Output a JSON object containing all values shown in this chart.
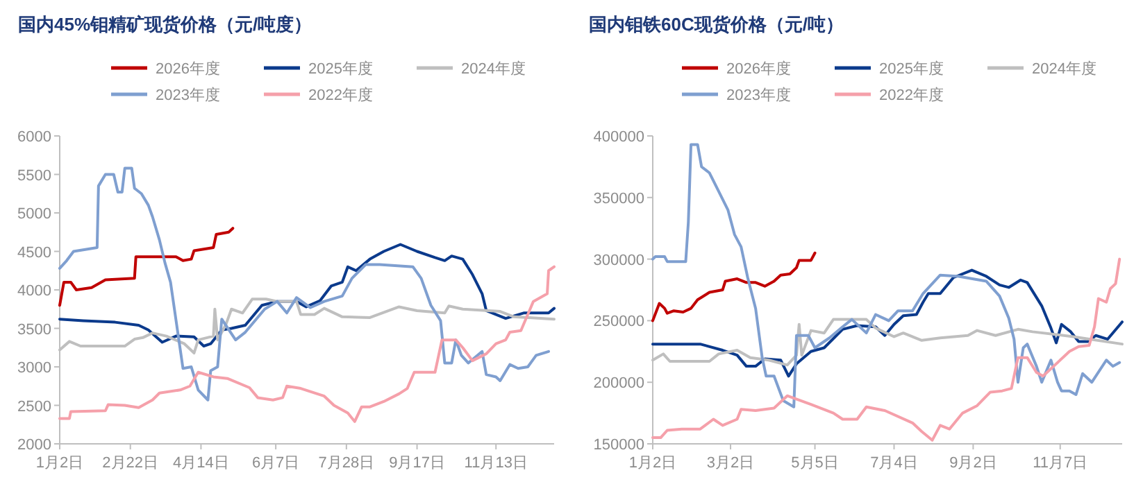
{
  "chart_data": [
    {
      "type": "line",
      "title": "国内45%钼精矿现货价格（元/吨度）",
      "legend": "top",
      "grid": false,
      "xlim": [
        "--01-02",
        "--12-25"
      ],
      "xticks": [
        {
          "value": "--01-02",
          "label": "1月2日"
        },
        {
          "value": "--02-22",
          "label": "2月22日"
        },
        {
          "value": "--04-14",
          "label": "4月14日"
        },
        {
          "value": "--06-07",
          "label": "6月7日"
        },
        {
          "value": "--07-28",
          "label": "7月28日"
        },
        {
          "value": "--09-17",
          "label": "9月17日"
        },
        {
          "value": "--11-13",
          "label": "11月13日"
        }
      ],
      "ylim": [
        2000,
        6000
      ],
      "yticks": [
        2000,
        2500,
        3000,
        3500,
        4000,
        4500,
        5000,
        5500,
        6000
      ],
      "series": [
        {
          "name": "2026年度",
          "color": "#c00000",
          "x": [
            "--01-02",
            "--01-05",
            "--01-10",
            "--01-14",
            "--01-25",
            "--02-04",
            "--02-25",
            "--02-26",
            "--03-27",
            "--04-01",
            "--04-07",
            "--04-09",
            "--04-23",
            "--04-25",
            "--05-04",
            "--05-07"
          ],
          "values": [
            3800,
            4100,
            4100,
            4000,
            4030,
            4130,
            4150,
            4430,
            4430,
            4380,
            4400,
            4510,
            4550,
            4720,
            4750,
            4800
          ]
        },
        {
          "name": "2025年度",
          "color": "#0b3a8c",
          "x": [
            "--01-02",
            "--01-19",
            "--02-11",
            "--02-28",
            "--03-07",
            "--03-17",
            "--03-27",
            "--04-09",
            "--04-16",
            "--04-21",
            "--04-29",
            "--05-06",
            "--05-16",
            "--05-28",
            "--06-08",
            "--06-22",
            "--06-29",
            "--07-09",
            "--07-17",
            "--07-25",
            "--07-29",
            "--08-04",
            "--08-14",
            "--08-24",
            "--09-05",
            "--09-17",
            "--09-30",
            "--10-07",
            "--10-12",
            "--10-20",
            "--10-27",
            "--11-03",
            "--11-06",
            "--11-20",
            "--12-03",
            "--12-21",
            "--12-25"
          ],
          "values": [
            3620,
            3600,
            3580,
            3540,
            3480,
            3320,
            3400,
            3390,
            3270,
            3300,
            3480,
            3500,
            3540,
            3800,
            3850,
            3850,
            3780,
            3860,
            4050,
            4100,
            4300,
            4250,
            4400,
            4500,
            4590,
            4500,
            4420,
            4380,
            4440,
            4400,
            4200,
            3950,
            3730,
            3630,
            3700,
            3700,
            3760
          ]
        },
        {
          "name": "2024年度",
          "color": "#bfbfbf",
          "x": [
            "--01-02",
            "--01-09",
            "--01-17",
            "--02-18",
            "--02-25",
            "--03-03",
            "--03-10",
            "--03-20",
            "--04-02",
            "--04-09",
            "--04-12",
            "--04-23",
            "--04-24",
            "--04-26",
            "--05-02",
            "--05-06",
            "--05-14",
            "--05-21",
            "--05-31",
            "--06-08",
            "--06-22",
            "--06-25",
            "--07-05",
            "--07-12",
            "--07-25",
            "--08-14",
            "--09-04",
            "--09-17",
            "--10-07",
            "--10-10",
            "--10-20",
            "--11-16",
            "--11-26",
            "--12-25"
          ],
          "values": [
            3220,
            3330,
            3270,
            3270,
            3360,
            3380,
            3440,
            3400,
            3300,
            3180,
            3350,
            3400,
            3750,
            3350,
            3550,
            3750,
            3700,
            3880,
            3880,
            3850,
            3850,
            3680,
            3680,
            3760,
            3650,
            3640,
            3780,
            3730,
            3700,
            3790,
            3750,
            3720,
            3650,
            3620
          ]
        },
        {
          "name": "2023年度",
          "color": "#7f9fd0",
          "x": [
            "--01-02",
            "--01-07",
            "--01-12",
            "--01-29",
            "--01-30",
            "--02-04",
            "--02-10",
            "--02-13",
            "--02-16",
            "--02-18",
            "--02-23",
            "--02-25",
            "--03-02",
            "--03-07",
            "--03-10",
            "--03-15",
            "--03-19",
            "--03-23",
            "--04-01",
            "--04-07",
            "--04-12",
            "--04-19",
            "--04-21",
            "--04-26",
            "--04-29",
            "--05-09",
            "--05-16",
            "--05-30",
            "--06-08",
            "--06-15",
            "--06-22",
            "--07-02",
            "--07-12",
            "--07-25",
            "--08-01",
            "--08-11",
            "--08-21",
            "--09-14",
            "--09-20",
            "--09-27",
            "--10-04",
            "--10-07",
            "--10-12",
            "--10-15",
            "--10-19",
            "--10-24",
            "--11-03",
            "--11-06",
            "--11-13",
            "--11-16",
            "--11-23",
            "--11-29",
            "--12-06",
            "--12-12",
            "--12-21"
          ],
          "values": [
            4280,
            4380,
            4500,
            4550,
            5350,
            5500,
            5500,
            5270,
            5270,
            5580,
            5580,
            5320,
            5250,
            5100,
            4950,
            4650,
            4350,
            4100,
            2980,
            3000,
            2700,
            2570,
            2950,
            3000,
            3620,
            3350,
            3450,
            3750,
            3850,
            3700,
            3900,
            3770,
            3850,
            3920,
            4150,
            4330,
            4330,
            4300,
            4150,
            3800,
            3600,
            3050,
            3050,
            3350,
            3150,
            3050,
            3200,
            2900,
            2870,
            2820,
            3030,
            2980,
            3000,
            3150,
            3200
          ]
        },
        {
          "name": "2022年度",
          "color": "#f5a0aa",
          "x": [
            "--01-02",
            "--01-09",
            "--01-10",
            "--02-04",
            "--02-06",
            "--02-18",
            "--02-28",
            "--03-10",
            "--03-15",
            "--03-30",
            "--04-06",
            "--04-12",
            "--04-23",
            "--05-03",
            "--05-19",
            "--05-25",
            "--06-05",
            "--06-12",
            "--06-15",
            "--06-25",
            "--07-12",
            "--07-19",
            "--07-29",
            "--08-03",
            "--08-08",
            "--08-14",
            "--08-24",
            "--09-04",
            "--09-10",
            "--09-15",
            "--09-30",
            "--10-05",
            "--10-15",
            "--10-20",
            "--10-27",
            "--11-06",
            "--11-13",
            "--11-20",
            "--11-23",
            "--12-01",
            "--12-10",
            "--12-20",
            "--12-21",
            "--12-25"
          ],
          "values": [
            2330,
            2330,
            2420,
            2430,
            2510,
            2500,
            2470,
            2570,
            2660,
            2700,
            2750,
            2930,
            2870,
            2850,
            2730,
            2600,
            2570,
            2600,
            2750,
            2720,
            2620,
            2500,
            2400,
            2290,
            2480,
            2480,
            2550,
            2650,
            2720,
            2930,
            2930,
            3350,
            3350,
            3250,
            3080,
            3170,
            3300,
            3350,
            3450,
            3470,
            3850,
            3950,
            4250,
            4300
          ]
        }
      ]
    },
    {
      "type": "line",
      "title": "国内钼铁60C现货价格（元/吨）",
      "legend": "top",
      "grid": false,
      "xlim": [
        "--01-02",
        "--12-24"
      ],
      "xticks": [
        {
          "value": "--01-02",
          "label": "1月2日"
        },
        {
          "value": "--03-02",
          "label": "3月2日"
        },
        {
          "value": "--05-05",
          "label": "5月5日"
        },
        {
          "value": "--07-04",
          "label": "7月4日"
        },
        {
          "value": "--09-02",
          "label": "9月2日"
        },
        {
          "value": "--11-07",
          "label": "11月7日"
        }
      ],
      "ylim": [
        150000,
        400000
      ],
      "yticks": [
        150000,
        200000,
        250000,
        300000,
        350000,
        400000
      ],
      "series": [
        {
          "name": "2026年度",
          "color": "#c00000",
          "x": [
            "--01-02",
            "--01-07",
            "--01-11",
            "--01-13",
            "--01-18",
            "--01-25",
            "--01-31",
            "--02-05",
            "--02-14",
            "--02-24",
            "--02-26",
            "--03-07",
            "--03-14",
            "--03-21",
            "--03-28",
            "--04-04",
            "--04-09",
            "--04-16",
            "--04-21",
            "--04-23",
            "--05-02",
            "--05-05"
          ],
          "values": [
            250000,
            264000,
            260000,
            256000,
            258000,
            257000,
            260000,
            267000,
            273000,
            275000,
            282000,
            284000,
            281000,
            281000,
            278000,
            282000,
            287000,
            288000,
            293000,
            299000,
            299000,
            305000
          ]
        },
        {
          "name": "2025年度",
          "color": "#0b3a8c",
          "x": [
            "--01-02",
            "--02-07",
            "--02-24",
            "--03-07",
            "--03-14",
            "--03-21",
            "--03-28",
            "--04-09",
            "--04-15",
            "--04-21",
            "--05-02",
            "--05-12",
            "--05-26",
            "--06-06",
            "--06-20",
            "--06-27",
            "--07-04",
            "--07-11",
            "--07-21",
            "--07-26",
            "--07-30",
            "--08-08",
            "--08-18",
            "--09-01",
            "--09-12",
            "--09-22",
            "--09-29",
            "--10-08",
            "--10-13",
            "--10-24",
            "--10-31",
            "--11-04",
            "--11-08",
            "--11-15",
            "--11-21",
            "--11-28",
            "--12-04",
            "--12-13",
            "--12-24"
          ],
          "values": [
            231000,
            231000,
            226000,
            222000,
            213000,
            213000,
            219000,
            218000,
            205000,
            215000,
            225000,
            228000,
            243000,
            246000,
            245000,
            238000,
            247000,
            254000,
            255000,
            265000,
            272000,
            272000,
            285000,
            291000,
            286000,
            279000,
            277000,
            283000,
            281000,
            262000,
            244000,
            232000,
            247000,
            241000,
            233000,
            233000,
            238000,
            235000,
            249000
          ]
        },
        {
          "name": "2024年度",
          "color": "#bfbfbf",
          "x": [
            "--01-02",
            "--01-10",
            "--01-15",
            "--02-14",
            "--02-21",
            "--03-07",
            "--03-17",
            "--03-31",
            "--04-14",
            "--04-21",
            "--04-23",
            "--04-25",
            "--05-02",
            "--05-12",
            "--05-19",
            "--06-13",
            "--06-20",
            "--07-04",
            "--07-11",
            "--07-25",
            "--08-08",
            "--08-29",
            "--09-05",
            "--09-19",
            "--10-06",
            "--10-17",
            "--11-17",
            "--12-24"
          ],
          "values": [
            218000,
            223000,
            217000,
            217000,
            223000,
            226000,
            220000,
            218000,
            214000,
            222000,
            247000,
            222000,
            242000,
            240000,
            251000,
            251000,
            244000,
            237000,
            240000,
            234000,
            236000,
            238000,
            242000,
            238000,
            243000,
            241000,
            237000,
            231000
          ]
        },
        {
          "name": "2023年度",
          "color": "#7f9fd0",
          "x": [
            "--01-02",
            "--01-04",
            "--01-11",
            "--01-13",
            "--01-27",
            "--01-29",
            "--01-31",
            "--02-05",
            "--02-08",
            "--02-14",
            "--02-21",
            "--02-28",
            "--03-05",
            "--03-10",
            "--03-15",
            "--03-21",
            "--03-26",
            "--03-29",
            "--04-04",
            "--04-11",
            "--04-19",
            "--04-21",
            "--04-30",
            "--05-05",
            "--05-16",
            "--05-26",
            "--06-02",
            "--06-13",
            "--06-20",
            "--06-30",
            "--07-07",
            "--07-18",
            "--07-26",
            "--08-08",
            "--08-22",
            "--09-12",
            "--09-22",
            "--09-29",
            "--10-03",
            "--10-06",
            "--10-10",
            "--10-13",
            "--10-20",
            "--10-24",
            "--10-31",
            "--11-05",
            "--11-08",
            "--11-14",
            "--11-19",
            "--11-24",
            "--12-01",
            "--12-12",
            "--12-17",
            "--12-22"
          ],
          "values": [
            300000,
            302000,
            302000,
            298000,
            298000,
            330000,
            393000,
            393000,
            375000,
            370000,
            355000,
            340000,
            320000,
            310000,
            285000,
            260000,
            220000,
            205000,
            205000,
            185000,
            180000,
            238000,
            238000,
            228000,
            236000,
            245000,
            251000,
            240000,
            255000,
            250000,
            258000,
            258000,
            272000,
            287000,
            286000,
            282000,
            270000,
            252000,
            235000,
            200000,
            228000,
            231000,
            213000,
            200000,
            218000,
            200000,
            193000,
            193000,
            190000,
            207000,
            200000,
            218000,
            213000,
            216000
          ]
        },
        {
          "name": "2022年度",
          "color": "#f5a0aa",
          "x": [
            "--01-02",
            "--01-08",
            "--01-13",
            "--01-24",
            "--02-07",
            "--02-17",
            "--02-24",
            "--03-07",
            "--03-10",
            "--03-21",
            "--04-04",
            "--04-14",
            "--05-02",
            "--05-19",
            "--05-26",
            "--06-06",
            "--06-13",
            "--06-27",
            "--07-18",
            "--07-25",
            "--08-02",
            "--08-08",
            "--08-15",
            "--08-25",
            "--09-05",
            "--09-15",
            "--09-24",
            "--10-01",
            "--10-06",
            "--10-13",
            "--10-20",
            "--10-25",
            "--11-03",
            "--11-14",
            "--11-21",
            "--11-29",
            "--12-03",
            "--12-06",
            "--12-12",
            "--12-15",
            "--12-19",
            "--12-22"
          ],
          "values": [
            155000,
            155000,
            161000,
            162000,
            162000,
            170000,
            165000,
            170000,
            178000,
            177000,
            179000,
            189000,
            182000,
            175000,
            170000,
            170000,
            180000,
            177000,
            167000,
            160000,
            153000,
            165000,
            162000,
            175000,
            181000,
            192000,
            193000,
            195000,
            220000,
            220000,
            208000,
            205000,
            214000,
            225000,
            229000,
            230000,
            245000,
            268000,
            265000,
            276000,
            280000,
            300000
          ]
        }
      ]
    }
  ]
}
